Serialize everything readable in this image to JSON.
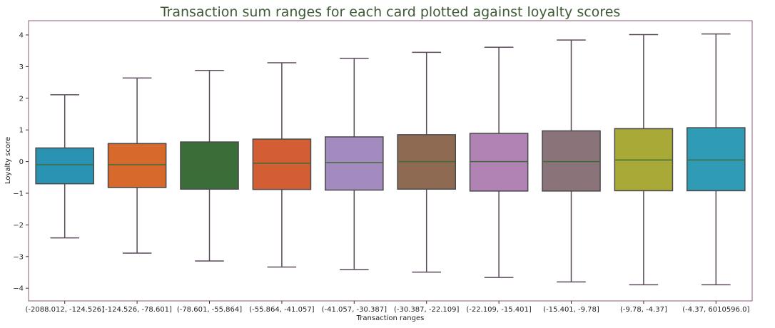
{
  "chart_data": {
    "type": "box",
    "title": "Transaction sum ranges for each card plotted against loyalty scores",
    "xlabel": "Transaction ranges",
    "ylabel": "Loyalty score",
    "ylim": [
      -4.4,
      4.45
    ],
    "yticks": [
      -4,
      -3,
      -2,
      -1,
      0,
      1,
      2,
      3,
      4
    ],
    "ytick_labels": [
      "−4",
      "−3",
      "−2",
      "−1",
      "0",
      "1",
      "2",
      "3",
      "4"
    ],
    "frame_color": "#8a5a78",
    "median_color": "#3f6b3a",
    "line_color": "#5a4a5a",
    "categories": [
      "(-2088.012, -124.526]",
      "(-124.526, -78.601]",
      "(-78.601, -55.864]",
      "(-55.864, -41.057]",
      "(-41.057, -30.387]",
      "(-30.387, -22.109]",
      "(-22.109, -15.401]",
      "(-15.401, -9.78]",
      "(-9.78, -4.37]",
      "(-4.37, 6010596.0]"
    ],
    "boxes": [
      {
        "whisker_low": -2.41,
        "q1": -0.7,
        "median": -0.1,
        "q3": 0.43,
        "whisker_high": 2.11,
        "color": "#2a93b4"
      },
      {
        "whisker_low": -2.89,
        "q1": -0.82,
        "median": -0.1,
        "q3": 0.57,
        "whisker_high": 2.64,
        "color": "#d8692c"
      },
      {
        "whisker_low": -3.14,
        "q1": -0.87,
        "median": -0.08,
        "q3": 0.62,
        "whisker_high": 2.88,
        "color": "#3b6d39"
      },
      {
        "whisker_low": -3.33,
        "q1": -0.88,
        "median": -0.05,
        "q3": 0.71,
        "whisker_high": 3.12,
        "color": "#d35e33"
      },
      {
        "whisker_low": -3.41,
        "q1": -0.9,
        "median": -0.03,
        "q3": 0.78,
        "whisker_high": 3.26,
        "color": "#a38bc0"
      },
      {
        "whisker_low": -3.49,
        "q1": -0.87,
        "median": 0.0,
        "q3": 0.85,
        "whisker_high": 3.45,
        "color": "#8e6a52"
      },
      {
        "whisker_low": -3.66,
        "q1": -0.93,
        "median": 0.0,
        "q3": 0.89,
        "whisker_high": 3.61,
        "color": "#b083b4"
      },
      {
        "whisker_low": -3.8,
        "q1": -0.93,
        "median": 0.0,
        "q3": 0.97,
        "whisker_high": 3.84,
        "color": "#8a7479"
      },
      {
        "whisker_low": -3.89,
        "q1": -0.92,
        "median": 0.05,
        "q3": 1.04,
        "whisker_high": 4.01,
        "color": "#a9a937"
      },
      {
        "whisker_low": -3.89,
        "q1": -0.92,
        "median": 0.05,
        "q3": 1.07,
        "whisker_high": 4.03,
        "color": "#2f9bb4"
      }
    ]
  }
}
